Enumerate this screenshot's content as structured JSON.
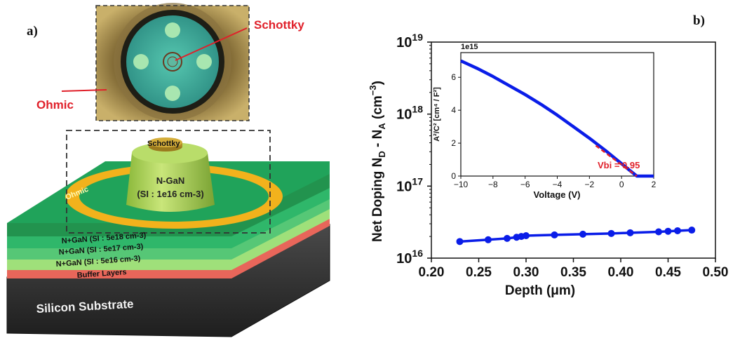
{
  "panel_a": {
    "label": "a)",
    "micro_labels": {
      "schottky": "Schottky",
      "ohmic": "Ohmic"
    },
    "device": {
      "schottky_contact": "Schottky",
      "ohmic_contact": "Ohmic",
      "mesa_line1": "N-GaN",
      "mesa_line2": "(SI : 1e16 cm-3)",
      "layers": [
        "N+GaN (SI : 5e18 cm-3)",
        "N+GaN (SI : 5e17 cm-3)",
        "N+GaN (SI : 5e16 cm-3)",
        "Buffer Layers",
        "Silicon Substrate"
      ]
    },
    "colors": {
      "annotation_red": "#e0202a",
      "green_layer": "#1f9f55",
      "gold_ring": "#f2b21c",
      "substrate": "#2d2d2d",
      "buffer": "#e8665a"
    }
  },
  "panel_b": {
    "label": "b)",
    "chart_data": [
      {
        "type": "line",
        "title": "",
        "xlabel": "Depth (μm)",
        "ylabel": "Net Doping N_D - N_A (cm^-3)",
        "y_scale": "log",
        "xlim": [
          0.2,
          0.5
        ],
        "ylim": [
          1e+16,
          1e+19
        ],
        "x_ticks": [
          "0.20",
          "0.25",
          "0.30",
          "0.35",
          "0.40",
          "0.45",
          "0.50"
        ],
        "y_ticks": [
          {
            "base": "10",
            "exp": "16"
          },
          {
            "base": "10",
            "exp": "17"
          },
          {
            "base": "10",
            "exp": "18"
          },
          {
            "base": "10",
            "exp": "19"
          }
        ],
        "series": [
          {
            "color": "#0a1de8",
            "x": [
              0.23,
              0.26,
              0.28,
              0.29,
              0.295,
              0.3,
              0.33,
              0.36,
              0.39,
              0.41,
              0.44,
              0.45,
              0.46,
              0.475
            ],
            "y": [
              1.7e+16,
              1.8e+16,
              1.88e+16,
              1.95e+16,
              2e+16,
              2.05e+16,
              2.1e+16,
              2.15e+16,
              2.2e+16,
              2.25e+16,
              2.32e+16,
              2.36e+16,
              2.4e+16,
              2.45e+16
            ]
          }
        ],
        "grid": false
      },
      {
        "type": "line",
        "title": "",
        "xlabel": "Voltage (V)",
        "ylabel": "A²/C² [cm⁴ / F²]",
        "y_multiplier": "1e15",
        "xlim": [
          -10,
          2
        ],
        "ylim": [
          0,
          7.5
        ],
        "x_ticks": [
          "−10",
          "−8",
          "−6",
          "−4",
          "−2",
          "0",
          "2"
        ],
        "y_ticks": [
          "0",
          "2",
          "4",
          "6"
        ],
        "annotation": "Vbi  = 0.95",
        "fit_color": "#e0202a",
        "series": [
          {
            "color": "#0a1de8",
            "x": [
              -10,
              -9,
              -8,
              -7,
              -6,
              -5,
              -4,
              -3,
              -2,
              -1,
              0,
              0.5,
              0.95,
              1.5,
              2
            ],
            "y": [
              7.0,
              6.55,
              6.05,
              5.5,
              4.95,
              4.35,
              3.7,
              3.0,
              2.3,
              1.55,
              0.75,
              0.35,
              0.0,
              0.0,
              0.0
            ]
          }
        ],
        "fit": {
          "x": [
            -1.6,
            0.95
          ],
          "y": [
            1.85,
            0.0
          ]
        },
        "grid": false
      }
    ]
  }
}
